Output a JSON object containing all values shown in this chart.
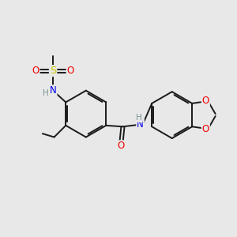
{
  "background_color": "#e8e8e8",
  "bond_color": "#1a1a1a",
  "atom_colors": {
    "C": "#1a1a1a",
    "H": "#7a9090",
    "N": "#0000ee",
    "O": "#ee0000",
    "S": "#cccc00"
  },
  "figsize": [
    3.0,
    3.0
  ],
  "dpi": 100
}
